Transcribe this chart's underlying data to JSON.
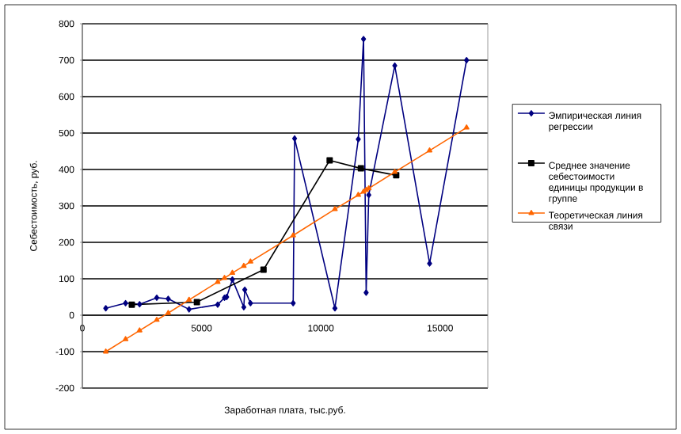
{
  "chart_data": {
    "type": "line",
    "xlabel": "Заработная плата, тыс.руб.",
    "ylabel": "Себестоимость, руб.",
    "xlim": [
      0,
      17000
    ],
    "xticks": [
      0,
      5000,
      10000,
      15000
    ],
    "ylim": [
      -200,
      800
    ],
    "yticks": [
      -200,
      -100,
      0,
      100,
      200,
      300,
      400,
      500,
      600,
      700,
      800
    ],
    "grid": "y",
    "legend": "right",
    "series": [
      {
        "name": "Эмпирическая линия регрессии",
        "color": "#000080",
        "marker": "diamond",
        "x": [
          982,
          1812,
          2400,
          3120,
          3600,
          4475,
          5675,
          5960,
          6050,
          6290,
          6770,
          6810,
          7050,
          8840,
          8900,
          10590,
          11570,
          11790,
          11900,
          12010,
          13100,
          14560,
          16110
        ],
        "values": [
          19,
          33,
          30,
          48,
          45,
          16,
          29,
          48,
          50,
          98,
          22,
          70,
          33,
          33,
          485,
          19,
          483,
          758,
          62,
          330,
          685,
          142,
          700
        ]
      },
      {
        "name": "Среднее значение себестоимости единицы продукции в группе",
        "color": "#000000",
        "marker": "square",
        "x": [
          2074,
          4803,
          7597,
          10370,
          11680,
          13160
        ],
        "values": [
          29,
          36,
          125,
          425,
          403,
          384
        ]
      },
      {
        "name": "Теоретическая линия связи",
        "color": "#ff6600",
        "marker": "triangle",
        "x": [
          982,
          1812,
          2400,
          3120,
          3600,
          4475,
          5675,
          5960,
          6290,
          6770,
          7050,
          8840,
          10590,
          11570,
          11790,
          11900,
          12010,
          13100,
          14560,
          16110
        ],
        "values": [
          -100,
          -66,
          -42,
          -13,
          6,
          42,
          91,
          102,
          116,
          135,
          147,
          219,
          291,
          330,
          339,
          344,
          348,
          393,
          452,
          515
        ]
      }
    ]
  }
}
